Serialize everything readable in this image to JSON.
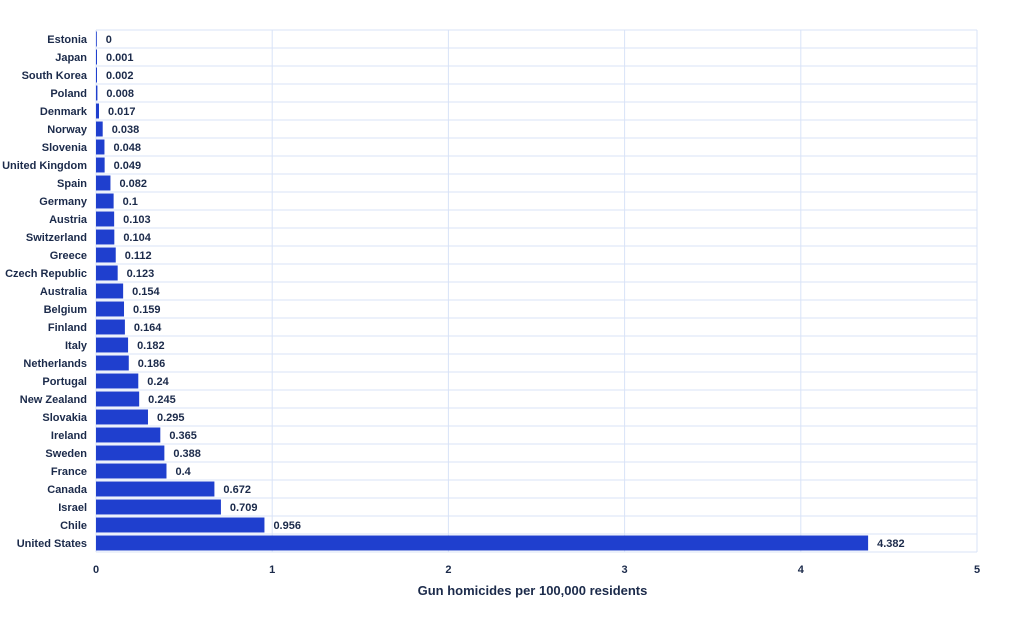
{
  "colors": {
    "bar": "#1f3fce",
    "text": "#1b2a4a",
    "grid": "#d9e3f7",
    "background": "#ffffff"
  },
  "chart_data": {
    "type": "bar",
    "orientation": "horizontal",
    "title": "",
    "xlabel": "Gun homicides per 100,000 residents",
    "ylabel": "",
    "xlim": [
      0,
      5
    ],
    "xticks": [
      0,
      1,
      2,
      3,
      4,
      5
    ],
    "grid": true,
    "legend": "none",
    "categories": [
      "Estonia",
      "Japan",
      "South Korea",
      "Poland",
      "Denmark",
      "Norway",
      "Slovenia",
      "United Kingdom",
      "Spain",
      "Germany",
      "Austria",
      "Switzerland",
      "Greece",
      "Czech Republic",
      "Australia",
      "Belgium",
      "Finland",
      "Italy",
      "Netherlands",
      "Portugal",
      "New Zealand",
      "Slovakia",
      "Ireland",
      "Sweden",
      "France",
      "Canada",
      "Israel",
      "Chile",
      "United States"
    ],
    "values": [
      0,
      0.001,
      0.002,
      0.008,
      0.017,
      0.038,
      0.048,
      0.049,
      0.082,
      0.1,
      0.103,
      0.104,
      0.112,
      0.123,
      0.154,
      0.159,
      0.164,
      0.182,
      0.186,
      0.24,
      0.245,
      0.295,
      0.365,
      0.388,
      0.4,
      0.672,
      0.709,
      0.956,
      4.382
    ],
    "value_labels": [
      "0",
      "0.001",
      "0.002",
      "0.008",
      "0.017",
      "0.038",
      "0.048",
      "0.049",
      "0.082",
      "0.1",
      "0.103",
      "0.104",
      "0.112",
      "0.123",
      "0.154",
      "0.159",
      "0.164",
      "0.182",
      "0.186",
      "0.24",
      "0.245",
      "0.295",
      "0.365",
      "0.388",
      "0.4",
      "0.672",
      "0.709",
      "0.956",
      "4.382"
    ]
  }
}
